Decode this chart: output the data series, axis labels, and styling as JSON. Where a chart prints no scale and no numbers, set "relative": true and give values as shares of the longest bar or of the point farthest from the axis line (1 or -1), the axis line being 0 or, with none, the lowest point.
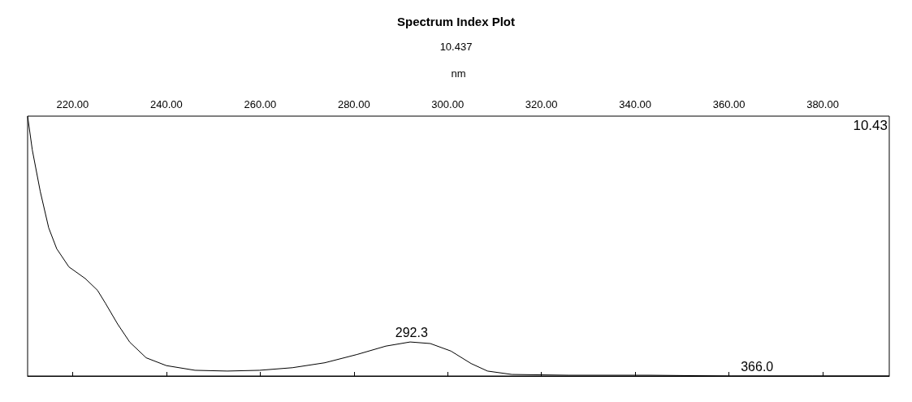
{
  "chart_data": {
    "type": "line",
    "title": "Spectrum Index Plot",
    "subtitle": "10.437",
    "xlabel": "nm",
    "relative": true,
    "marker": "none",
    "grid": false,
    "x": [
      210.4,
      211.4,
      213.1,
      214.9,
      216.6,
      219.2,
      222.7,
      225.3,
      227.0,
      229.6,
      232.2,
      235.7,
      240,
      246.1,
      253,
      259.9,
      266.9,
      273.8,
      280.7,
      286.8,
      292,
      296.3,
      300.7,
      305,
      308.5,
      313.7,
      325.8,
      343.1,
      360.5,
      377.8,
      394.2
    ],
    "series": [
      {
        "color": "#000000",
        "values": [
          1.0,
          0.87,
          0.71,
          0.57,
          0.49,
          0.42,
          0.375,
          0.33,
          0.28,
          0.2,
          0.13,
          0.07,
          0.04,
          0.022,
          0.019,
          0.022,
          0.032,
          0.051,
          0.083,
          0.115,
          0.131,
          0.125,
          0.096,
          0.048,
          0.019,
          0.006,
          0.003,
          0.003,
          0,
          0,
          0
        ]
      }
    ],
    "xlim": [
      210.4,
      394.2
    ],
    "xticks": [
      {
        "value": 220,
        "label": "220.00"
      },
      {
        "value": 240,
        "label": "240.00"
      },
      {
        "value": 260,
        "label": "260.00"
      },
      {
        "value": 280,
        "label": "280.00"
      },
      {
        "value": 300,
        "label": "300.00"
      },
      {
        "value": 320,
        "label": "320.00"
      },
      {
        "value": 340,
        "label": "340.00"
      },
      {
        "value": 360,
        "label": "360.00"
      },
      {
        "value": 380,
        "label": "380.00"
      }
    ],
    "annotations": [
      {
        "text": "292.3",
        "x": 292.3,
        "y": 0.131
      },
      {
        "text": "366.0",
        "x": 366,
        "y": 0
      },
      "10.43"
    ]
  }
}
